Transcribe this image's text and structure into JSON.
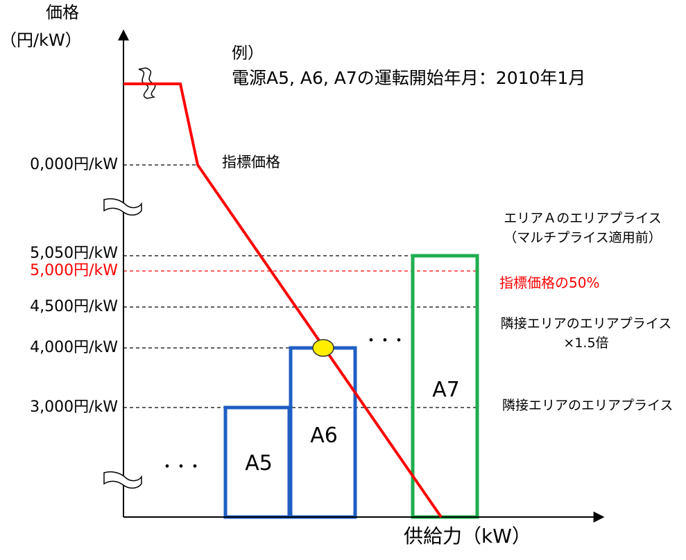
{
  "axes": {
    "y_title_line1": "価格",
    "y_title_line2": "（円/kW）",
    "x_title": "供給力（kW）"
  },
  "example": {
    "line1": "例）",
    "line2": "電源A5, A6, A7の運転開始年月：2010年1月"
  },
  "price_levels": [
    {
      "label": "0,000円/kW",
      "color": "#000000"
    },
    {
      "label": "5,050円/kW",
      "color": "#000000"
    },
    {
      "label": "5,000円/kW",
      "color": "#ff0000"
    },
    {
      "label": "4,500円/kW",
      "color": "#000000"
    },
    {
      "label": "4,000円/kW",
      "color": "#000000"
    },
    {
      "label": "3,000円/kW",
      "color": "#000000"
    }
  ],
  "annotations": {
    "index_price": "指標価格",
    "area_price_line1": "エリアＡのエリアプライス",
    "area_price_line2": "（マルチプライス適用前）",
    "index_half": "指標価格の50%",
    "adjacent_x15_line1": "隣接エリアのエリアプライス",
    "adjacent_x15_line2": "×1.5倍",
    "adjacent": "隣接エリアのエリアプライス"
  },
  "bars": [
    {
      "label": "A5",
      "color": "#1f5fc4"
    },
    {
      "label": "A6",
      "color": "#1f5fc4"
    },
    {
      "label": "A7",
      "color": "#1fae4f"
    }
  ],
  "ellipsis": "･･･",
  "colors": {
    "curve": "#ff0000",
    "blue": "#1f5fc4",
    "green": "#1fae4f",
    "marker": "#ffee00"
  }
}
